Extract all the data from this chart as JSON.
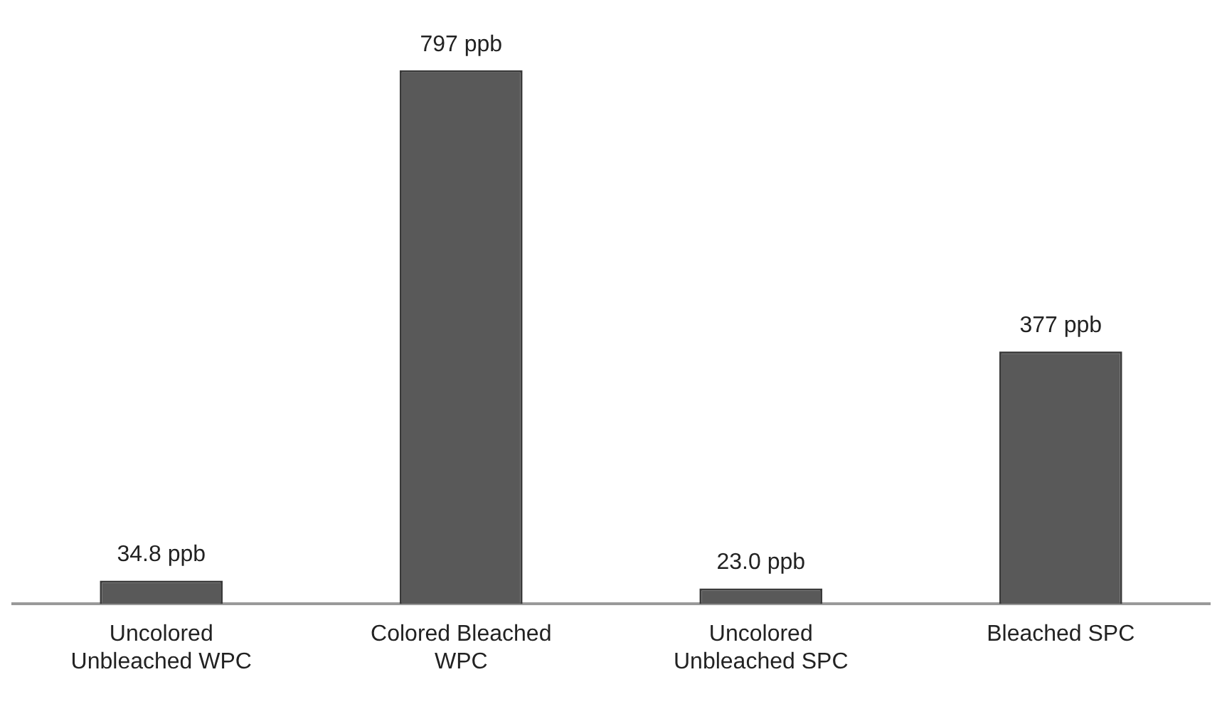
{
  "chart_data": {
    "type": "bar",
    "categories": [
      "Uncolored Unbleached WPC",
      "Colored Bleached WPC",
      "Uncolored Unbleached SPC",
      "Bleached SPC"
    ],
    "values": [
      34.8,
      797,
      23.0,
      377
    ],
    "value_labels": [
      "34.8 ppb",
      "797 ppb",
      "23.0 ppb",
      "377 ppb"
    ],
    "color": "#595959",
    "grid": false,
    "legend": false
  }
}
